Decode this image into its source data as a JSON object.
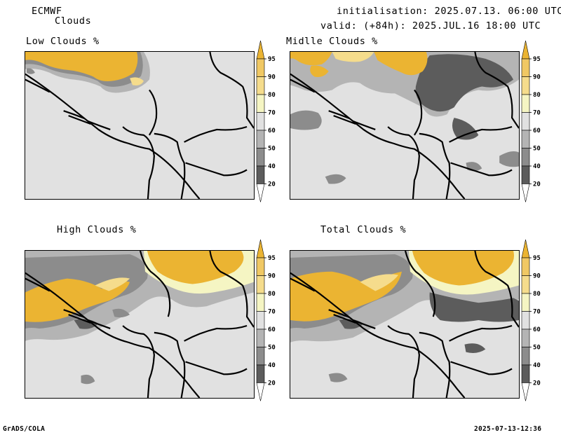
{
  "header": {
    "model": "ECMWF",
    "product": "Clouds",
    "init_line": "initialisation: 2025.07.13. 06:00 UTC",
    "valid_line": "valid: (+84h): 2025.JUL.16 18:00 UTC"
  },
  "panels": [
    {
      "title": "Low Clouds %"
    },
    {
      "title": "Midlle Clouds %"
    },
    {
      "title": "High Clouds %"
    },
    {
      "title": "Total Clouds %"
    }
  ],
  "colorbar": {
    "levels": [
      "20",
      "40",
      "50",
      "60",
      "70",
      "80",
      "90",
      "95"
    ],
    "colors": {
      "lt20": "#ffffff",
      "20_40": "#5c5c5c",
      "40_50": "#8c8c8c",
      "50_60": "#b4b4b4",
      "60_70": "#e1e1e1",
      "70_80": "#f5f5c3",
      "80_90": "#f5dc8c",
      "90_95": "#f0c864",
      "gt95": "#ebb432"
    }
  },
  "footer": {
    "left": "GrADS/COLA",
    "right": "2025-07-13-12:36"
  }
}
